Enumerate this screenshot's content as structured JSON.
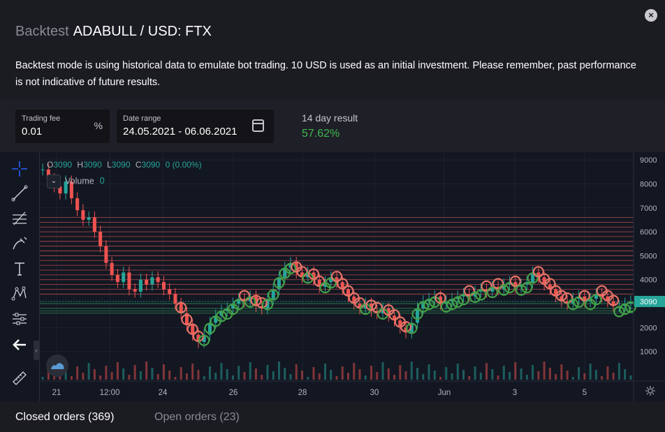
{
  "header": {
    "title_prefix": "Backtest",
    "title_main": "ADABULL / USD: FTX",
    "close_icon": "close-icon",
    "description": "Backtest mode is using historical data to emulate bot trading. 10 USD is used as an initial investment. Please remember, past performance is not indicative of future results."
  },
  "settings": {
    "trading_fee": {
      "label": "Trading fee",
      "value": "0.01",
      "suffix": "%"
    },
    "date_range": {
      "label": "Date range",
      "value": "24.05.2021 - 06.06.2021",
      "icon": "calendar-icon"
    },
    "result": {
      "label": "14 day result",
      "value": "57.62%",
      "color": "#3fb950"
    }
  },
  "chart": {
    "legend": {
      "o_label": "O",
      "o": "3090",
      "h_label": "H",
      "h": "3090",
      "l_label": "L",
      "l": "3090",
      "c_label": "C",
      "c": "3090",
      "change": "0 (0.00%)"
    },
    "volume_label": "Volume",
    "volume_value": "0",
    "last_price": "3090",
    "colors": {
      "up": "#26a69a",
      "down": "#ef5350",
      "buy_marker": "#43a047",
      "sell_marker": "#e57368",
      "background": "#131722"
    },
    "tools": [
      "crosshair-icon",
      "trend-line-icon",
      "fib-icon",
      "brush-icon",
      "text-icon",
      "pattern-icon",
      "measure-icon",
      "back-arrow-icon",
      "ruler-icon"
    ]
  },
  "chart_data": {
    "type": "candlestick",
    "y_ticks": [
      "9000",
      "8000",
      "7000",
      "6000",
      "5000",
      "4000",
      "3090",
      "2000",
      "1000"
    ],
    "ylim": [
      0,
      9500
    ],
    "x_ticks": [
      "21",
      "12:00",
      "24",
      "26",
      "28",
      "30",
      "Jun",
      "3",
      "5"
    ],
    "series": [
      {
        "name": "price",
        "values": [
          8600,
          8200,
          7900,
          7600,
          8100,
          7400,
          6900,
          6500,
          6600,
          6000,
          5400,
          4700,
          4200,
          3900,
          4300,
          3600,
          3500,
          4000,
          3800,
          4100,
          3900,
          3600,
          3400,
          3000,
          2600,
          2100,
          1700,
          1400,
          1700,
          2200,
          2500,
          2700,
          2800,
          3000,
          3200,
          3100,
          3300,
          2900,
          2800,
          3200,
          3600,
          4100,
          4500,
          4700,
          4300,
          4100,
          4300,
          4000,
          3700,
          3900,
          4100,
          3900,
          3600,
          3300,
          3000,
          2800,
          3000,
          2700,
          2600,
          2800,
          2500,
          2300,
          2000,
          1800,
          2200,
          2800,
          3100,
          3200,
          3300,
          3000,
          3100,
          3200,
          3300,
          3400,
          3300,
          3500,
          3600,
          3500,
          3700,
          3600,
          3800,
          3900,
          3700,
          3800,
          3900,
          4300,
          4100,
          3800,
          3600,
          3300,
          3100,
          3000,
          3200,
          3300,
          3100,
          3200,
          3400,
          3300,
          3100,
          2900,
          2900,
          3000,
          3090
        ]
      }
    ],
    "grid_lines_red": [
      6600,
      6400,
      6200,
      6000,
      5800,
      5600,
      5400,
      5200,
      5000,
      4800,
      4600,
      4400,
      4200,
      4000,
      3800,
      3600,
      3400
    ],
    "grid_lines_green": [
      3000,
      2800,
      2700,
      2600
    ]
  },
  "tabs": {
    "closed": "Closed orders (369)",
    "open": "Open orders (23)"
  }
}
